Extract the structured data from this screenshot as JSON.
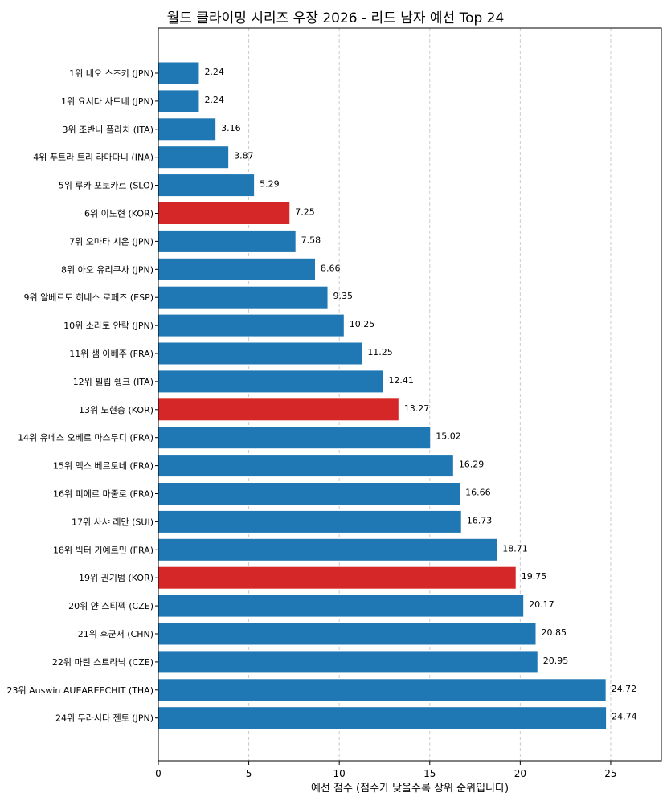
{
  "chart_data": {
    "type": "bar",
    "orientation": "horizontal",
    "title": "월드 클라이밍 시리즈 우장 2026 - 리드 남자 예선 Top 24",
    "xlabel": "예선 점수 (점수가 낮을수록 상위 순위입니다)",
    "ylabel": "",
    "xlim": [
      0,
      27.8
    ],
    "xticks": [
      0,
      5,
      10,
      15,
      20,
      25
    ],
    "grid": "x-dashed",
    "colors": {
      "default": "#1f77b4",
      "highlight": "#d62728"
    },
    "categories": [
      "1위 네오 스즈키 (JPN)",
      "1위 요시다 사토네 (JPN)",
      "3위 조반니 플라치 (ITA)",
      "4위 푸트라 트리 라마다니 (INA)",
      "5위 루카 포토카르 (SLO)",
      "6위 이도현 (KOR)",
      "7위 오마타 시온 (JPN)",
      "8위 아오 유리쿠사 (JPN)",
      "9위 알베르토 히네스 로페즈 (ESP)",
      "10위 소라토 안락 (JPN)",
      "11위 샘 아베주 (FRA)",
      "12위 필립 쉥크 (ITA)",
      "13위 노현승 (KOR)",
      "14위 유네스 오베르 마스무디 (FRA)",
      "15위 맥스 베르토네 (FRA)",
      "16위 피에르 마줄로 (FRA)",
      "17위 사샤 레만 (SUI)",
      "18위 빅터 기예르민 (FRA)",
      "19위 권기범 (KOR)",
      "20위 얀 스티펙 (CZE)",
      "21위 후군저 (CHN)",
      "22위 마틴 스트라닉 (CZE)",
      "23위 Auswin AUEAREECHIT (THA)",
      "24위 무라시타 젠토 (JPN)"
    ],
    "values": [
      2.24,
      2.24,
      3.16,
      3.87,
      5.29,
      7.25,
      7.58,
      8.66,
      9.35,
      10.25,
      11.25,
      12.41,
      13.27,
      15.02,
      16.29,
      16.66,
      16.73,
      18.71,
      19.75,
      20.17,
      20.85,
      20.95,
      24.72,
      24.74
    ],
    "value_labels": [
      "2.24",
      "2.24",
      "3.16",
      "3.87",
      "5.29",
      "7.25",
      "7.58",
      "8.66",
      "9.35",
      "10.25",
      "11.25",
      "12.41",
      "13.27",
      "15.02",
      "16.29",
      "16.66",
      "16.73",
      "18.71",
      "19.75",
      "20.17",
      "20.85",
      "20.95",
      "24.72",
      "24.74"
    ],
    "highlight": [
      false,
      false,
      false,
      false,
      false,
      true,
      false,
      false,
      false,
      false,
      false,
      false,
      true,
      false,
      false,
      false,
      false,
      false,
      true,
      false,
      false,
      false,
      false,
      false
    ]
  }
}
